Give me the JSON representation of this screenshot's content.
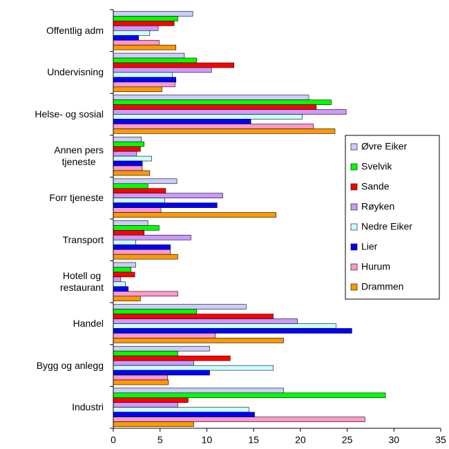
{
  "chart_data": {
    "type": "bar",
    "orientation": "horizontal",
    "categories": [
      "Offentlig adm",
      "Undervisning",
      "Helse- og sosial",
      "Annen pers\ntjeneste",
      "Forr tjeneste",
      "Transport",
      "Hotell og\nrestaurant",
      "Handel",
      "Bygg og anlegg",
      "Industri"
    ],
    "series": [
      {
        "name": "Øvre Eiker",
        "color": "#ccccff",
        "values": [
          8.5,
          7.6,
          20.9,
          3.0,
          6.8,
          3.7,
          2.4,
          14.2,
          10.3,
          18.2
        ]
      },
      {
        "name": "Svelvik",
        "color": "#00ff00",
        "values": [
          6.9,
          8.9,
          23.3,
          3.3,
          3.7,
          4.9,
          1.9,
          8.9,
          6.9,
          29.1
        ]
      },
      {
        "name": "Sande",
        "color": "#ff0000",
        "values": [
          6.5,
          12.9,
          21.7,
          2.9,
          5.6,
          3.3,
          2.3,
          17.1,
          12.5,
          8.0
        ]
      },
      {
        "name": "Røyken",
        "color": "#cc99ff",
        "values": [
          4.8,
          10.5,
          24.9,
          2.5,
          11.7,
          8.3,
          0.8,
          19.7,
          8.6,
          6.9
        ]
      },
      {
        "name": "Nedre Eiker",
        "color": "#ccffff",
        "values": [
          3.9,
          6.3,
          20.2,
          4.1,
          5.5,
          2.4,
          1.3,
          23.8,
          17.1,
          14.5
        ]
      },
      {
        "name": "Lier",
        "color": "#0000ff",
        "values": [
          2.7,
          6.7,
          14.7,
          3.1,
          11.1,
          6.1,
          1.6,
          25.5,
          10.3,
          15.1
        ]
      },
      {
        "name": "Hurum",
        "color": "#ff99cc",
        "values": [
          4.9,
          6.6,
          21.4,
          3.1,
          5.1,
          6.1,
          6.9,
          10.9,
          5.8,
          26.9
        ]
      },
      {
        "name": "Drammen",
        "color": "#ff9900",
        "values": [
          6.7,
          5.2,
          23.7,
          3.9,
          17.4,
          6.9,
          2.9,
          18.2,
          5.9,
          8.6
        ]
      }
    ],
    "xlim": [
      0,
      35
    ],
    "xticks": [
      0,
      5,
      10,
      15,
      20,
      25,
      30,
      35
    ],
    "grid": false,
    "legend": "right"
  }
}
